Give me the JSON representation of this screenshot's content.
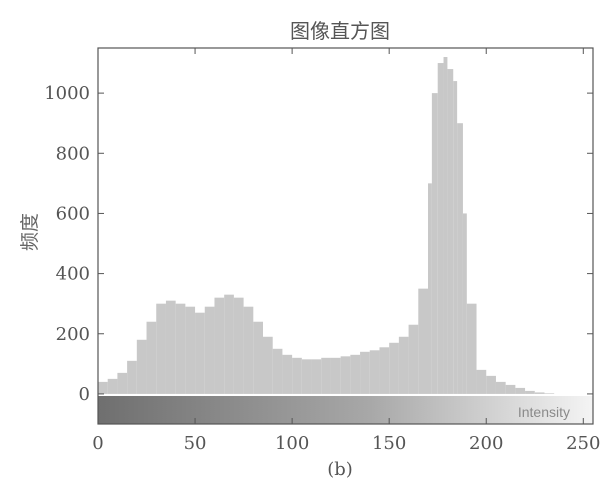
{
  "chart_data": {
    "type": "bar",
    "title": "图像直方图",
    "xlabel": "",
    "ylabel": "频度",
    "caption": "(b)",
    "colorbar_label": "Intensity",
    "xlim": [
      0,
      255
    ],
    "ylim": [
      -100,
      1150
    ],
    "x_ticks": [
      0,
      50,
      100,
      150,
      200,
      250
    ],
    "y_ticks": [
      0,
      200,
      400,
      600,
      800,
      1000
    ],
    "x_tick_labels": [
      "0",
      "50",
      "100",
      "150",
      "200",
      "250"
    ],
    "y_tick_labels": [
      "0",
      "200",
      "400",
      "600",
      "800",
      "1000"
    ],
    "grid": false,
    "colors": {
      "bar": "#c8c8c8",
      "axis": "#555555",
      "text": "#555555"
    },
    "x": [
      0,
      5,
      10,
      15,
      20,
      25,
      30,
      35,
      40,
      45,
      50,
      55,
      60,
      65,
      70,
      75,
      80,
      85,
      90,
      95,
      100,
      105,
      110,
      115,
      120,
      125,
      130,
      135,
      140,
      145,
      150,
      155,
      160,
      165,
      170,
      172,
      175,
      178,
      180,
      183,
      185,
      188,
      190,
      195,
      200,
      205,
      210,
      215,
      220,
      225,
      230,
      235,
      240,
      245,
      250,
      255
    ],
    "values": [
      40,
      50,
      70,
      110,
      180,
      240,
      300,
      310,
      300,
      290,
      270,
      290,
      320,
      330,
      320,
      290,
      240,
      190,
      150,
      130,
      120,
      115,
      115,
      120,
      120,
      125,
      130,
      140,
      145,
      155,
      170,
      190,
      230,
      350,
      700,
      1000,
      1100,
      1120,
      1080,
      1040,
      900,
      600,
      300,
      80,
      60,
      40,
      30,
      20,
      10,
      5,
      2,
      0,
      0,
      0,
      0,
      0
    ]
  }
}
